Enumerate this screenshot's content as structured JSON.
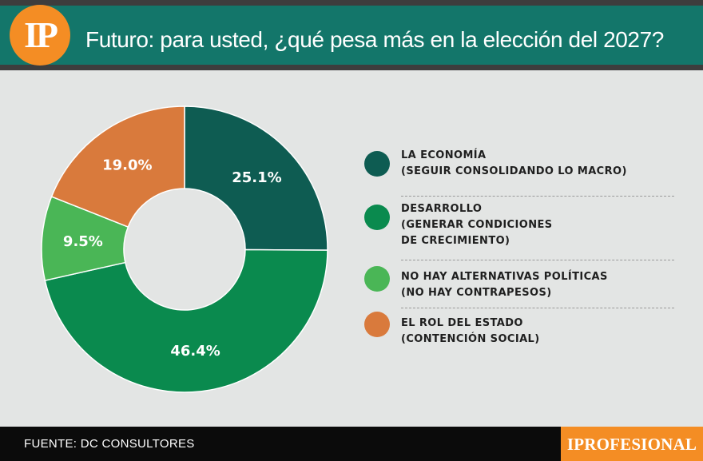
{
  "header": {
    "logo_text": "IP",
    "title": "Futuro: para usted, ¿qué pesa más en la elección del 2027?"
  },
  "chart_data": {
    "type": "pie",
    "donut": true,
    "values": [
      25.1,
      46.4,
      9.5,
      19.0
    ],
    "value_labels": [
      "25.1%",
      "46.4%",
      "9.5%",
      "19.0%"
    ],
    "colors": [
      "#0e5c52",
      "#0a8a4e",
      "#4ab656",
      "#d97a3c"
    ],
    "legend": [
      {
        "lines": [
          "LA ECONOMÍA",
          "(SEGUIR CONSOLIDANDO LO MACRO)"
        ],
        "color": "#0e5c52"
      },
      {
        "lines": [
          "DESARROLLO",
          "(GENERAR CONDICIONES",
          "DE CRECIMIENTO)"
        ],
        "color": "#0a8a4e"
      },
      {
        "lines": [
          "NO HAY ALTERNATIVAS POLÍTICAS",
          "(NO HAY CONTRAPESOS)"
        ],
        "color": "#4ab656"
      },
      {
        "lines": [
          "EL ROL DEL ESTADO",
          "(CONTENCIÓN SOCIAL)"
        ],
        "color": "#d97a3c"
      }
    ],
    "legend_position": "right"
  },
  "footer": {
    "source": "FUENTE: DC CONSULTORES",
    "brand": "IPROFESIONAL"
  }
}
